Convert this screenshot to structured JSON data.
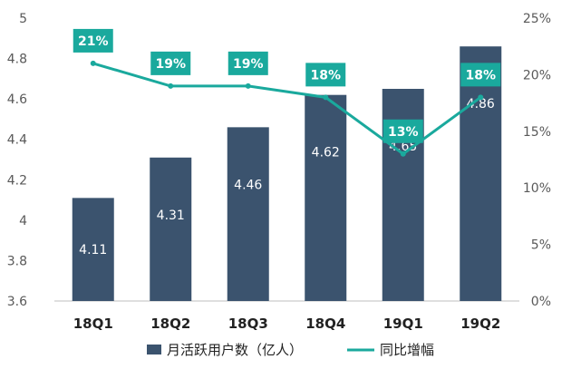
{
  "chart_data": {
    "type": "bar",
    "categories": [
      "18Q1",
      "18Q2",
      "18Q3",
      "18Q4",
      "19Q1",
      "19Q2"
    ],
    "y_left": {
      "min": 3.6,
      "max": 5,
      "step": 0.2,
      "tick_labels": [
        "3.6",
        "3.8",
        "4",
        "4.2",
        "4.4",
        "4.6",
        "4.8",
        "5"
      ]
    },
    "y_right": {
      "min": 0,
      "max": 25,
      "step": 5,
      "tick_labels": [
        "0%",
        "5%",
        "10%",
        "15%",
        "20%",
        "25%"
      ]
    },
    "series": [
      {
        "name": "月活跃用户数（亿人）",
        "type": "bar",
        "values": [
          4.11,
          4.31,
          4.46,
          4.62,
          4.65,
          4.86
        ],
        "labels": [
          "4.11",
          "4.31",
          "4.46",
          "4.62",
          "4.65",
          "4.86"
        ]
      },
      {
        "name": "同比增幅",
        "type": "line",
        "axis": "right",
        "values": [
          21,
          19,
          19,
          18,
          13,
          18
        ],
        "labels": [
          "21%",
          "19%",
          "19%",
          "18%",
          "13%",
          "18%"
        ]
      }
    ],
    "grid": false,
    "legend_position": "bottom"
  },
  "colors": {
    "bar": "#3b536e",
    "line": "#1aa99d",
    "axis": "#bfbfbf"
  }
}
